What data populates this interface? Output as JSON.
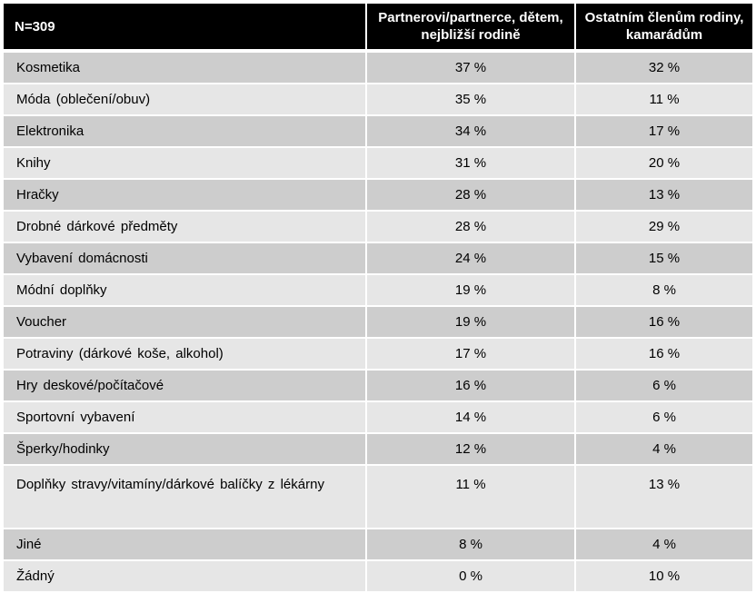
{
  "table": {
    "headers": {
      "n": "N=309",
      "col1": "Partnerovi/partnerce, dětem, nejbližší rodině",
      "col2": "Ostatním členům rodiny, kamarádům"
    },
    "rows": [
      {
        "label": "Kosmetika",
        "v1": "37 %",
        "v2": "32 %"
      },
      {
        "label": "Móda (oblečení/obuv)",
        "v1": "35 %",
        "v2": "11 %"
      },
      {
        "label": "Elektronika",
        "v1": "34 %",
        "v2": "17 %"
      },
      {
        "label": "Knihy",
        "v1": "31 %",
        "v2": "20 %"
      },
      {
        "label": "Hračky",
        "v1": "28 %",
        "v2": "13 %"
      },
      {
        "label": "Drobné dárkové předměty",
        "v1": "28 %",
        "v2": "29 %"
      },
      {
        "label": "Vybavení domácnosti",
        "v1": "24 %",
        "v2": "15 %"
      },
      {
        "label": "Módní doplňky",
        "v1": "19 %",
        "v2": "8 %"
      },
      {
        "label": "Voucher",
        "v1": "19 %",
        "v2": "16 %"
      },
      {
        "label": "Potraviny (dárkové koše, alkohol)",
        "v1": "17 %",
        "v2": "16 %"
      },
      {
        "label": "Hry deskové/počítačové",
        "v1": "16 %",
        "v2": "6 %"
      },
      {
        "label": "Sportovní vybavení",
        "v1": "14 %",
        "v2": "6 %"
      },
      {
        "label": "Šperky/hodinky",
        "v1": "12 %",
        "v2": "4 %"
      },
      {
        "label": "Doplňky stravy/vitamíny/dárkové  balíčky z lékárny",
        "v1": "11 %",
        "v2": "13 %"
      },
      {
        "label": "Jiné",
        "v1": "8 %",
        "v2": "4 %"
      },
      {
        "label": "Žádný",
        "v1": "0 %",
        "v2": "10 %"
      }
    ]
  },
  "colors": {
    "header_bg": "#000000",
    "header_text": "#ffffff",
    "row_dark": "#cdcdcd",
    "row_light": "#e6e6e6"
  }
}
